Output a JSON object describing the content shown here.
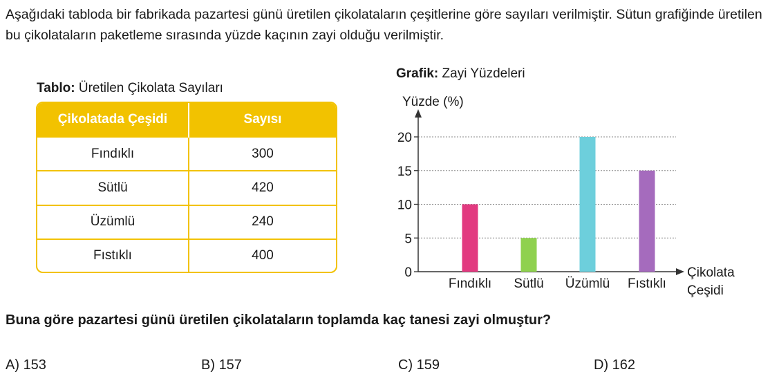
{
  "intro_text": "Aşağıdaki tabloda bir fabrikada pazartesi günü üretilen çikolataların çeşitlerine göre sayıları verilmiştir. Sütun grafiğinde üretilen bu çikolataların paketleme sırasında yüzde kaçının zayi olduğu verilmiştir.",
  "table": {
    "caption_bold": "Tablo:",
    "caption_text": " Üretilen Çikolata Sayıları",
    "headers": [
      "Çikolatada Çeşidi",
      "Sayısı"
    ],
    "rows": [
      {
        "type": "Fındıklı",
        "count": "300"
      },
      {
        "type": "Sütlü",
        "count": "420"
      },
      {
        "type": "Üzümlü",
        "count": "240"
      },
      {
        "type": "Fıstıklı",
        "count": "400"
      }
    ],
    "colors": {
      "header_bg": "#f2c200",
      "border": "#f2c200"
    }
  },
  "chart_caption": {
    "bold": "Grafik:",
    "text": " Zayi Yüzdeleri"
  },
  "chart_data": {
    "type": "bar",
    "categories": [
      "Fındıklı",
      "Sütlü",
      "Üzümlü",
      "Fıstıklı"
    ],
    "values": [
      10,
      5,
      20,
      15
    ],
    "colors": [
      "#e23a80",
      "#8fd14f",
      "#6dcfdc",
      "#a56bbd"
    ],
    "title": "Zayi Yüzdeleri",
    "ylabel": "Yüzde (%)",
    "xlabel_lines": [
      "Çikolata",
      "Çeşidi"
    ],
    "ylim": [
      0,
      20
    ],
    "yticks": [
      0,
      5,
      10,
      15,
      20
    ],
    "grid": true
  },
  "question": "Buna göre pazartesi günü üretilen çikolataların toplamda kaç tanesi zayi olmuştur?",
  "answers": [
    {
      "label": "A)",
      "value": "153"
    },
    {
      "label": "B)",
      "value": "157"
    },
    {
      "label": "C)",
      "value": "159"
    },
    {
      "label": "D)",
      "value": "162"
    }
  ]
}
